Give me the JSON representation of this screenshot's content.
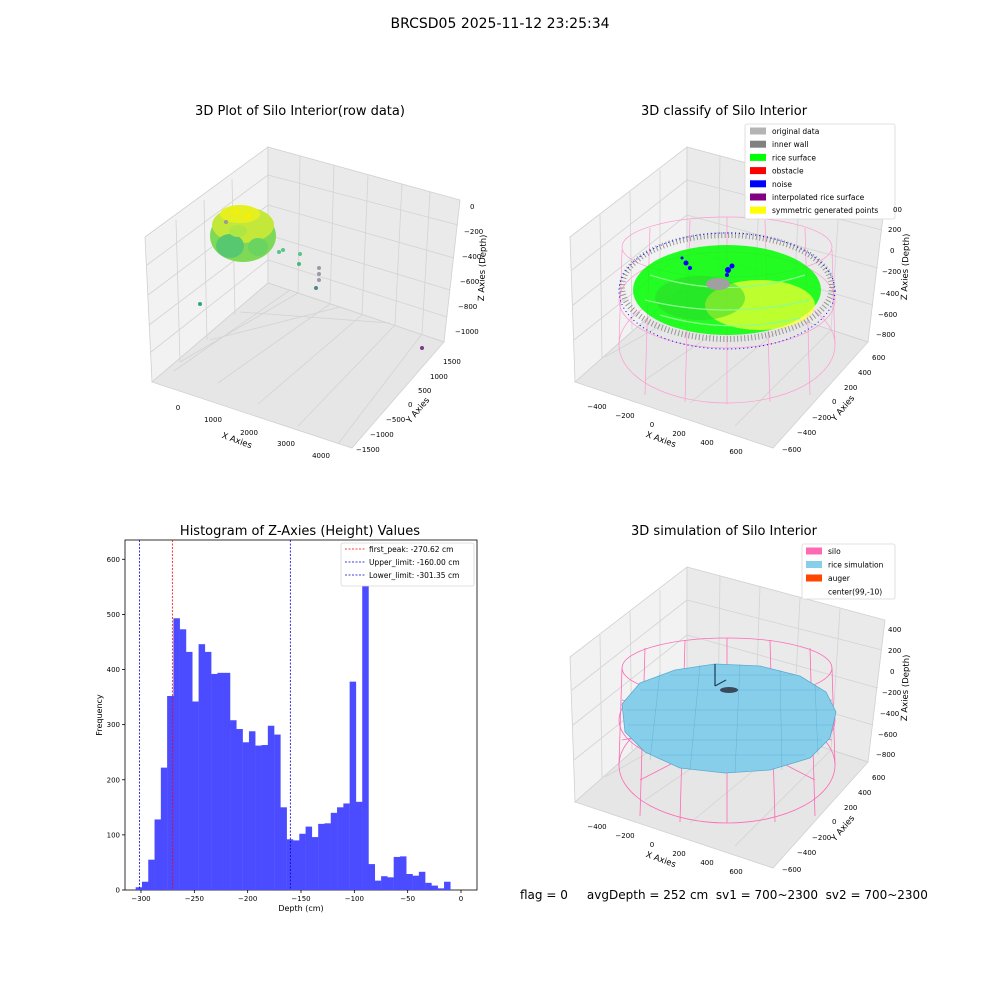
{
  "suptitle": "BRCSD05 2025-11-12 23:25:34",
  "panels": {
    "raw": {
      "title": "3D Plot of Silo Interior(row data)",
      "x_label": "X Axies",
      "y_label": "Y Axies",
      "z_label": "Z Axies (Depth)",
      "x_ticks": [
        "0",
        "1000",
        "2000",
        "3000",
        "4000"
      ],
      "y_ticks": [
        "1500",
        "1000",
        "500",
        "0",
        "−500",
        "−1000",
        "−1500"
      ],
      "z_ticks": [
        "0",
        "−200",
        "−400",
        "−600",
        "−800",
        "−1000"
      ]
    },
    "classify": {
      "title": "3D classify of Silo Interior",
      "x_label": "X Axies",
      "y_label": "Y Axies",
      "z_label": "Z Axies (Depth)",
      "x_ticks": [
        "−400",
        "−200",
        "0",
        "200",
        "400",
        "600"
      ],
      "y_ticks": [
        "600",
        "400",
        "200",
        "0",
        "−200",
        "−400",
        "−600"
      ],
      "z_ticks": [
        "200",
        "0",
        "−200",
        "−400",
        "−600",
        "−800"
      ],
      "partial_tick": "00",
      "legend": [
        {
          "label": "original data",
          "color": "#b4b4b4"
        },
        {
          "label": "inner wall",
          "color": "#808080"
        },
        {
          "label": "rice surface",
          "color": "#00ff00"
        },
        {
          "label": "obstacle",
          "color": "#ff0000"
        },
        {
          "label": "noise",
          "color": "#0000ff"
        },
        {
          "label": "interpolated rice surface",
          "color": "#800080"
        },
        {
          "label": "symmetric generated points",
          "color": "#ffff00"
        }
      ]
    },
    "simulation": {
      "title": "3D simulation of Silo Interior",
      "x_label": "X Axies",
      "y_label": "Y Axies",
      "z_label": "Z Axies (Depth)",
      "x_ticks": [
        "−400",
        "−200",
        "0",
        "200",
        "400",
        "600"
      ],
      "y_ticks": [
        "600",
        "400",
        "200",
        "0",
        "−200",
        "−400",
        "−600"
      ],
      "z_ticks": [
        "400",
        "200",
        "0",
        "−200",
        "−400",
        "−600",
        "−800"
      ],
      "legend": [
        {
          "label": "silo",
          "color": "#ff69b4"
        },
        {
          "label": "rice simulation",
          "color": "#87ceeb"
        },
        {
          "label": "auger",
          "color": "#ff4500"
        },
        {
          "label": "center(99,-10)",
          "color": "#ffffff"
        }
      ]
    }
  },
  "footer": "flag = 0     avgDepth = 252 cm  sv1 = 700~2300  sv2 = 700~2300",
  "colors": {
    "hist_bar": "#4b4bff",
    "first_peak_line": "#ff0000",
    "limit_line": "#0000cd",
    "silo_wire": "#ff69b4",
    "rice": "#87ceeb",
    "pane": "#f2f2f2"
  },
  "chart_data": {
    "type": "bar",
    "title": "Histogram of Z-Axies (Height) Values",
    "xlabel": "Depth (cm)",
    "ylabel": "Frequency",
    "xlim": [
      -315,
      15
    ],
    "ylim": [
      0,
      635
    ],
    "x_ticks": [
      -300,
      -250,
      -200,
      -150,
      -100,
      -50,
      0
    ],
    "x_tick_labels": [
      "−300",
      "−250",
      "−200",
      "−150",
      "−100",
      "−50",
      "0"
    ],
    "y_ticks": [
      0,
      100,
      200,
      300,
      400,
      500,
      600
    ],
    "bin_width": 5.9,
    "bins": [
      {
        "x": -305.0,
        "v": 5
      },
      {
        "x": -299.1,
        "v": 15
      },
      {
        "x": -293.2,
        "v": 55
      },
      {
        "x": -287.3,
        "v": 128
      },
      {
        "x": -281.4,
        "v": 222
      },
      {
        "x": -275.5,
        "v": 352
      },
      {
        "x": -269.6,
        "v": 493
      },
      {
        "x": -263.7,
        "v": 473
      },
      {
        "x": -257.8,
        "v": 432
      },
      {
        "x": -251.9,
        "v": 342
      },
      {
        "x": -246.0,
        "v": 446
      },
      {
        "x": -240.1,
        "v": 432
      },
      {
        "x": -234.2,
        "v": 392
      },
      {
        "x": -228.3,
        "v": 394
      },
      {
        "x": -222.4,
        "v": 394
      },
      {
        "x": -216.5,
        "v": 308
      },
      {
        "x": -210.6,
        "v": 292
      },
      {
        "x": -204.7,
        "v": 268
      },
      {
        "x": -198.8,
        "v": 288
      },
      {
        "x": -192.9,
        "v": 262
      },
      {
        "x": -187.0,
        "v": 263
      },
      {
        "x": -181.1,
        "v": 298
      },
      {
        "x": -175.2,
        "v": 282
      },
      {
        "x": -169.3,
        "v": 150
      },
      {
        "x": -163.4,
        "v": 92
      },
      {
        "x": -157.5,
        "v": 90
      },
      {
        "x": -151.6,
        "v": 102
      },
      {
        "x": -145.7,
        "v": 115
      },
      {
        "x": -139.8,
        "v": 96
      },
      {
        "x": -133.9,
        "v": 120
      },
      {
        "x": -128.0,
        "v": 121
      },
      {
        "x": -122.1,
        "v": 140
      },
      {
        "x": -116.2,
        "v": 150
      },
      {
        "x": -110.3,
        "v": 157
      },
      {
        "x": -104.4,
        "v": 378
      },
      {
        "x": -98.5,
        "v": 160
      },
      {
        "x": -92.6,
        "v": 605
      },
      {
        "x": -86.7,
        "v": 47
      },
      {
        "x": -80.8,
        "v": 17
      },
      {
        "x": -74.9,
        "v": 25
      },
      {
        "x": -69.0,
        "v": 23
      },
      {
        "x": -63.1,
        "v": 60
      },
      {
        "x": -57.2,
        "v": 61
      },
      {
        "x": -51.3,
        "v": 29
      },
      {
        "x": -45.4,
        "v": 26
      },
      {
        "x": -39.5,
        "v": 33
      },
      {
        "x": -33.6,
        "v": 13
      },
      {
        "x": -27.7,
        "v": 8
      },
      {
        "x": -21.8,
        "v": 3
      },
      {
        "x": -15.9,
        "v": 15
      }
    ],
    "vlines": [
      {
        "x": -270.62,
        "label": "first_peak: -270.62 cm",
        "color": "#ff0000"
      },
      {
        "x": -160.0,
        "label": "Upper_limit: -160.00 cm",
        "color": "#0000cd"
      },
      {
        "x": -301.35,
        "label": "Lower_limit: -301.35 cm",
        "color": "#0000cd"
      }
    ],
    "legend_position": "top-right"
  }
}
